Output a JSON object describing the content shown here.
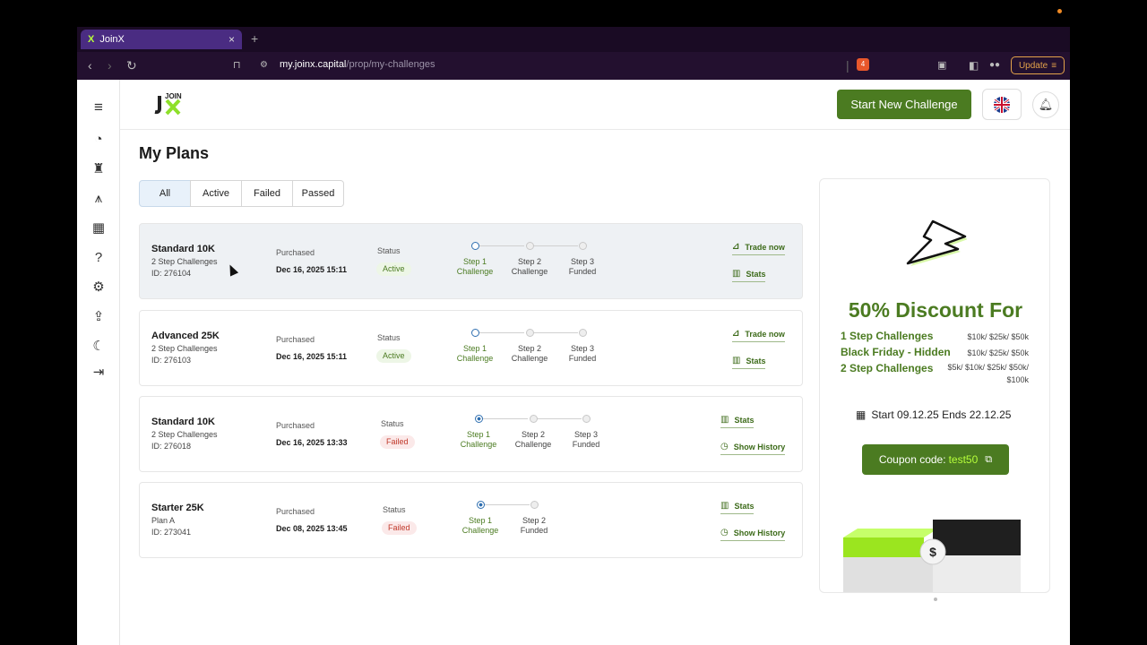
{
  "browser": {
    "tab_title": "JoinX",
    "tab_favicon": "X",
    "close_label": "×",
    "newtab_label": "+",
    "url_host": "my.joinx.capital",
    "url_path": "/prop/my-challenges",
    "update_label": "Update",
    "brave_count": "4"
  },
  "header": {
    "logo_text": "JOIN",
    "start_button": "Start New Challenge"
  },
  "page": {
    "title": "My Plans",
    "filters": [
      "All",
      "Active",
      "Failed",
      "Passed"
    ]
  },
  "plans": [
    {
      "name": "Standard 10K",
      "type": "2 Step Challenges",
      "id": "ID: 276104",
      "purchased_label": "Purchased",
      "purchased": "Dec 16, 2025 15:11",
      "status_label": "Status",
      "status": "Active",
      "steps": [
        [
          "Step 1",
          "Challenge"
        ],
        [
          "Step 2",
          "Challenge"
        ],
        [
          "Step 3",
          "Funded"
        ]
      ],
      "actions": [
        "Trade now",
        "Stats"
      ]
    },
    {
      "name": "Advanced 25K",
      "type": "2 Step Challenges",
      "id": "ID: 276103",
      "purchased_label": "Purchased",
      "purchased": "Dec 16, 2025 15:11",
      "status_label": "Status",
      "status": "Active",
      "steps": [
        [
          "Step 1",
          "Challenge"
        ],
        [
          "Step 2",
          "Challenge"
        ],
        [
          "Step 3",
          "Funded"
        ]
      ],
      "actions": [
        "Trade now",
        "Stats"
      ]
    },
    {
      "name": "Standard 10K",
      "type": "2 Step Challenges",
      "id": "ID: 276018",
      "purchased_label": "Purchased",
      "purchased": "Dec 16, 2025 13:33",
      "status_label": "Status",
      "status": "Failed",
      "steps": [
        [
          "Step 1",
          "Challenge"
        ],
        [
          "Step 2",
          "Challenge"
        ],
        [
          "Step 3",
          "Funded"
        ]
      ],
      "actions": [
        "Stats",
        "Show History"
      ]
    },
    {
      "name": "Starter 25K",
      "type": "Plan A",
      "id": "ID: 273041",
      "purchased_label": "Purchased",
      "purchased": "Dec 08, 2025 13:45",
      "status_label": "Status",
      "status": "Failed",
      "steps": [
        [
          "Step 1",
          "Challenge"
        ],
        [
          "Step 2",
          "Funded"
        ]
      ],
      "actions": [
        "Stats",
        "Show History"
      ]
    }
  ],
  "promo": {
    "headline": "50% Discount For",
    "rows": [
      {
        "label": "1 Step Challenges",
        "values": "$10k/ $25k/ $50k"
      },
      {
        "label": "Black Friday - Hidden",
        "values": "$10k/ $25k/ $50k"
      },
      {
        "label": "2 Step Challenges",
        "values": "$5k/ $10k/ $25k/ $50k/ $100k"
      }
    ],
    "dates": "Start 09.12.25 Ends 22.12.25",
    "coupon_label": "Coupon code:",
    "coupon_code": "test50",
    "dollar": "$"
  },
  "colors": {
    "brand_green": "#4b7b21",
    "accent_lime": "#b6ff3a",
    "failed_red": "#c0392b",
    "step_blue": "#2f6fb0"
  }
}
